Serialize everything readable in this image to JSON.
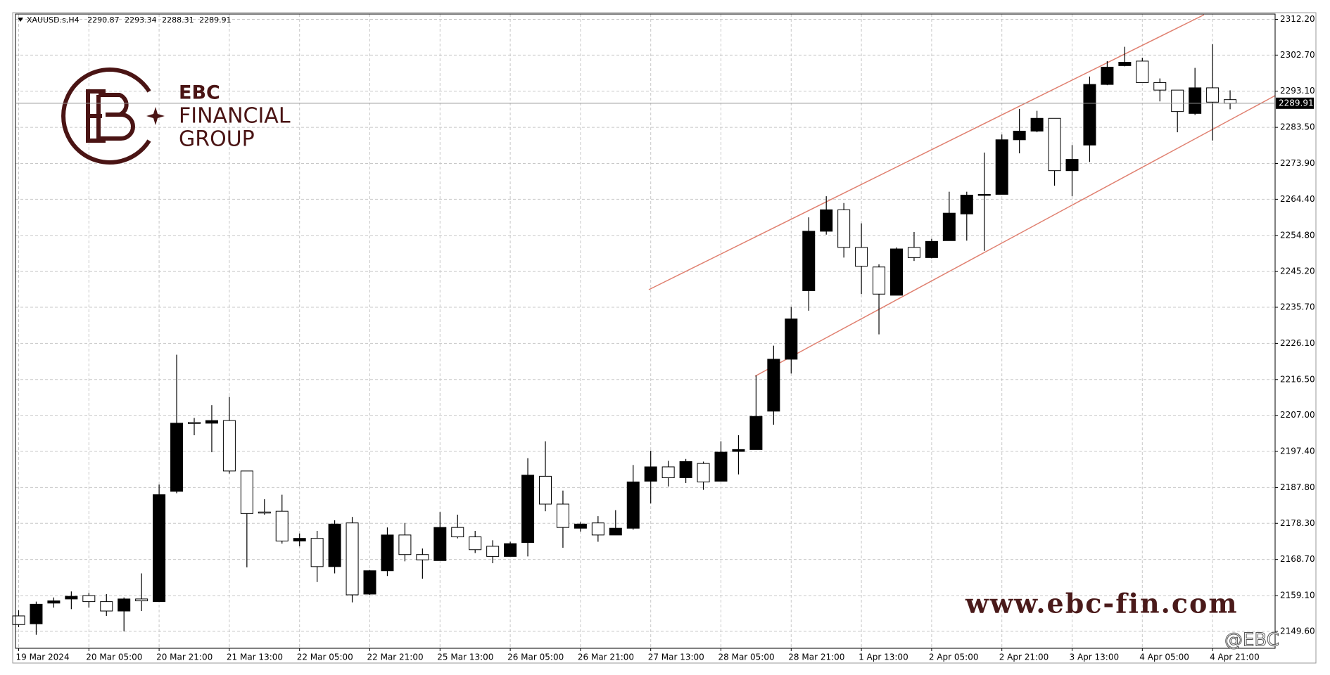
{
  "chart_data": {
    "type": "candlestick",
    "symbol": "XAUUSD.s,H4",
    "categories": [
      "19 Mar 2024",
      null,
      null,
      null,
      "20 Mar 05:00",
      null,
      null,
      null,
      "20 Mar 21:00",
      null,
      null,
      null,
      "21 Mar 13:00",
      null,
      null,
      null,
      "22 Mar 05:00",
      null,
      null,
      null,
      "22 Mar 21:00",
      null,
      null,
      null,
      "25 Mar 13:00",
      null,
      null,
      null,
      "26 Mar 05:00",
      null,
      null,
      null,
      "26 Mar 21:00",
      null,
      null,
      null,
      "27 Mar 13:00",
      null,
      null,
      null,
      "28 Mar 05:00",
      null,
      null,
      null,
      "28 Mar 21:00",
      null,
      null,
      null,
      "1 Apr 13:00",
      null,
      null,
      null,
      "2 Apr 05:00",
      null,
      null,
      null,
      "2 Apr 21:00",
      null,
      null,
      null,
      "3 Apr 13:00",
      null,
      null,
      null,
      "4 Apr 05:00",
      null,
      null,
      null,
      "4 Apr 21:00",
      null
    ],
    "open": [
      2153.7,
      2151.6,
      2157.1,
      2158.2,
      2159.1,
      2157.5,
      2155.0,
      2158.2,
      2157.5,
      2186.8,
      2205.1,
      2204.9,
      2205.6,
      2192.2,
      2181.3,
      2181.5,
      2173.6,
      2174.3,
      2166.8,
      2178.4,
      2159.5,
      2165.7,
      2175.2,
      2170.0,
      2168.4,
      2177.2,
      2174.7,
      2172.2,
      2169.5,
      2173.2,
      2190.8,
      2183.4,
      2177.0,
      2178.4,
      2175.2,
      2177.0,
      2189.5,
      2193.3,
      2190.4,
      2194.2,
      2189.5,
      2197.4,
      2197.9,
      2208.1,
      2221.9,
      2240.1,
      2255.9,
      2261.6,
      2251.6,
      2246.4,
      2238.9,
      2251.6,
      2248.9,
      2253.4,
      2260.5,
      2265.5,
      2265.7,
      2280.2,
      2282.5,
      2285.9,
      2272.0,
      2278.8,
      2294.9,
      2299.9,
      2301.1,
      2295.4,
      2293.4,
      2287.2,
      2294.0,
      2290.87
    ],
    "high": [
      2155.2,
      2157.5,
      2158.6,
      2160.2,
      2159.8,
      2159.5,
      2158.6,
      2165.0,
      2188.6,
      2223.1,
      2206.3,
      2209.7,
      2211.9,
      2192.2,
      2184.7,
      2185.9,
      2175.6,
      2176.3,
      2179.1,
      2180.0,
      2165.9,
      2177.2,
      2178.4,
      2171.6,
      2181.3,
      2180.6,
      2176.3,
      2173.8,
      2173.4,
      2195.6,
      2200.1,
      2187.0,
      2178.6,
      2180.2,
      2181.8,
      2193.8,
      2197.6,
      2194.9,
      2195.4,
      2194.7,
      2200.1,
      2201.7,
      2217.6,
      2225.5,
      2235.8,
      2259.6,
      2265.2,
      2263.4,
      2258.0,
      2247.1,
      2251.6,
      2255.7,
      2253.9,
      2266.4,
      2266.4,
      2276.8,
      2281.6,
      2288.4,
      2287.9,
      2285.9,
      2278.8,
      2297.0,
      2301.1,
      2304.9,
      2302.0,
      2296.5,
      2293.4,
      2299.3,
      2305.6,
      2293.34
    ],
    "low": [
      2150.7,
      2148.7,
      2155.9,
      2155.5,
      2155.9,
      2153.7,
      2149.6,
      2155.0,
      2157.5,
      2186.3,
      2201.7,
      2197.2,
      2191.5,
      2166.6,
      2180.6,
      2172.9,
      2172.2,
      2162.7,
      2165.0,
      2157.3,
      2159.3,
      2164.3,
      2168.2,
      2163.6,
      2168.4,
      2174.3,
      2170.4,
      2167.7,
      2169.5,
      2169.5,
      2181.5,
      2171.8,
      2176.1,
      2173.4,
      2175.2,
      2176.6,
      2183.6,
      2188.1,
      2189.0,
      2187.2,
      2189.5,
      2191.3,
      2197.9,
      2204.5,
      2218.1,
      2234.8,
      2255.0,
      2248.9,
      2239.2,
      2228.5,
      2238.9,
      2248.0,
      2248.7,
      2253.4,
      2253.4,
      2250.7,
      2265.7,
      2276.6,
      2282.2,
      2268.0,
      2265.2,
      2274.3,
      2294.7,
      2299.7,
      2295.4,
      2290.4,
      2282.2,
      2286.8,
      2280.0,
      2288.31
    ],
    "close": [
      2151.4,
      2156.8,
      2157.7,
      2158.9,
      2157.5,
      2155.0,
      2158.2,
      2157.7,
      2185.9,
      2204.9,
      2204.9,
      2205.6,
      2192.2,
      2180.9,
      2181.1,
      2173.6,
      2174.3,
      2166.8,
      2178.1,
      2159.3,
      2165.7,
      2175.2,
      2170.0,
      2168.6,
      2177.2,
      2174.7,
      2171.3,
      2169.5,
      2172.9,
      2191.1,
      2183.4,
      2177.2,
      2178.1,
      2175.2,
      2177.0,
      2189.3,
      2193.3,
      2190.4,
      2194.7,
      2189.3,
      2197.2,
      2197.9,
      2206.7,
      2221.9,
      2232.6,
      2255.9,
      2261.6,
      2251.6,
      2246.6,
      2239.2,
      2251.2,
      2248.9,
      2253.2,
      2260.7,
      2265.5,
      2265.7,
      2280.2,
      2282.5,
      2285.9,
      2272.0,
      2275.0,
      2294.9,
      2299.5,
      2300.8,
      2295.4,
      2293.4,
      2287.7,
      2294.0,
      2290.2,
      2289.91
    ],
    "ylim": [
      2145.1,
      2313.6
    ],
    "yticks": [
      {
        "value": 2149.6,
        "label": "2149.60"
      },
      {
        "value": 2159.1,
        "label": "2159.10"
      },
      {
        "value": 2168.7,
        "label": "2168.70"
      },
      {
        "value": 2178.3,
        "label": "2178.30"
      },
      {
        "value": 2187.8,
        "label": "2187.80"
      },
      {
        "value": 2197.4,
        "label": "2197.40"
      },
      {
        "value": 2207.0,
        "label": "2207.00"
      },
      {
        "value": 2216.5,
        "label": "2216.50"
      },
      {
        "value": 2226.1,
        "label": "2226.10"
      },
      {
        "value": 2235.7,
        "label": "2235.70"
      },
      {
        "value": 2245.2,
        "label": "2245.20"
      },
      {
        "value": 2254.8,
        "label": "2254.80"
      },
      {
        "value": 2264.4,
        "label": "2264.40"
      },
      {
        "value": 2273.9,
        "label": "2273.90"
      },
      {
        "value": 2283.5,
        "label": "2283.50"
      },
      {
        "value": 2293.1,
        "label": "2293.10"
      },
      {
        "value": 2302.7,
        "label": "2302.70"
      },
      {
        "value": 2312.2,
        "label": "2312.20"
      }
    ],
    "grid": true,
    "up_color": "#000000",
    "down_color": "#ffffff"
  },
  "branding": {
    "logo_line1": "EBC",
    "logo_line2": "FINANCIAL",
    "logo_line3": "GROUP",
    "website": "www.ebc-fin.com",
    "handle": "@EBC"
  }
}
